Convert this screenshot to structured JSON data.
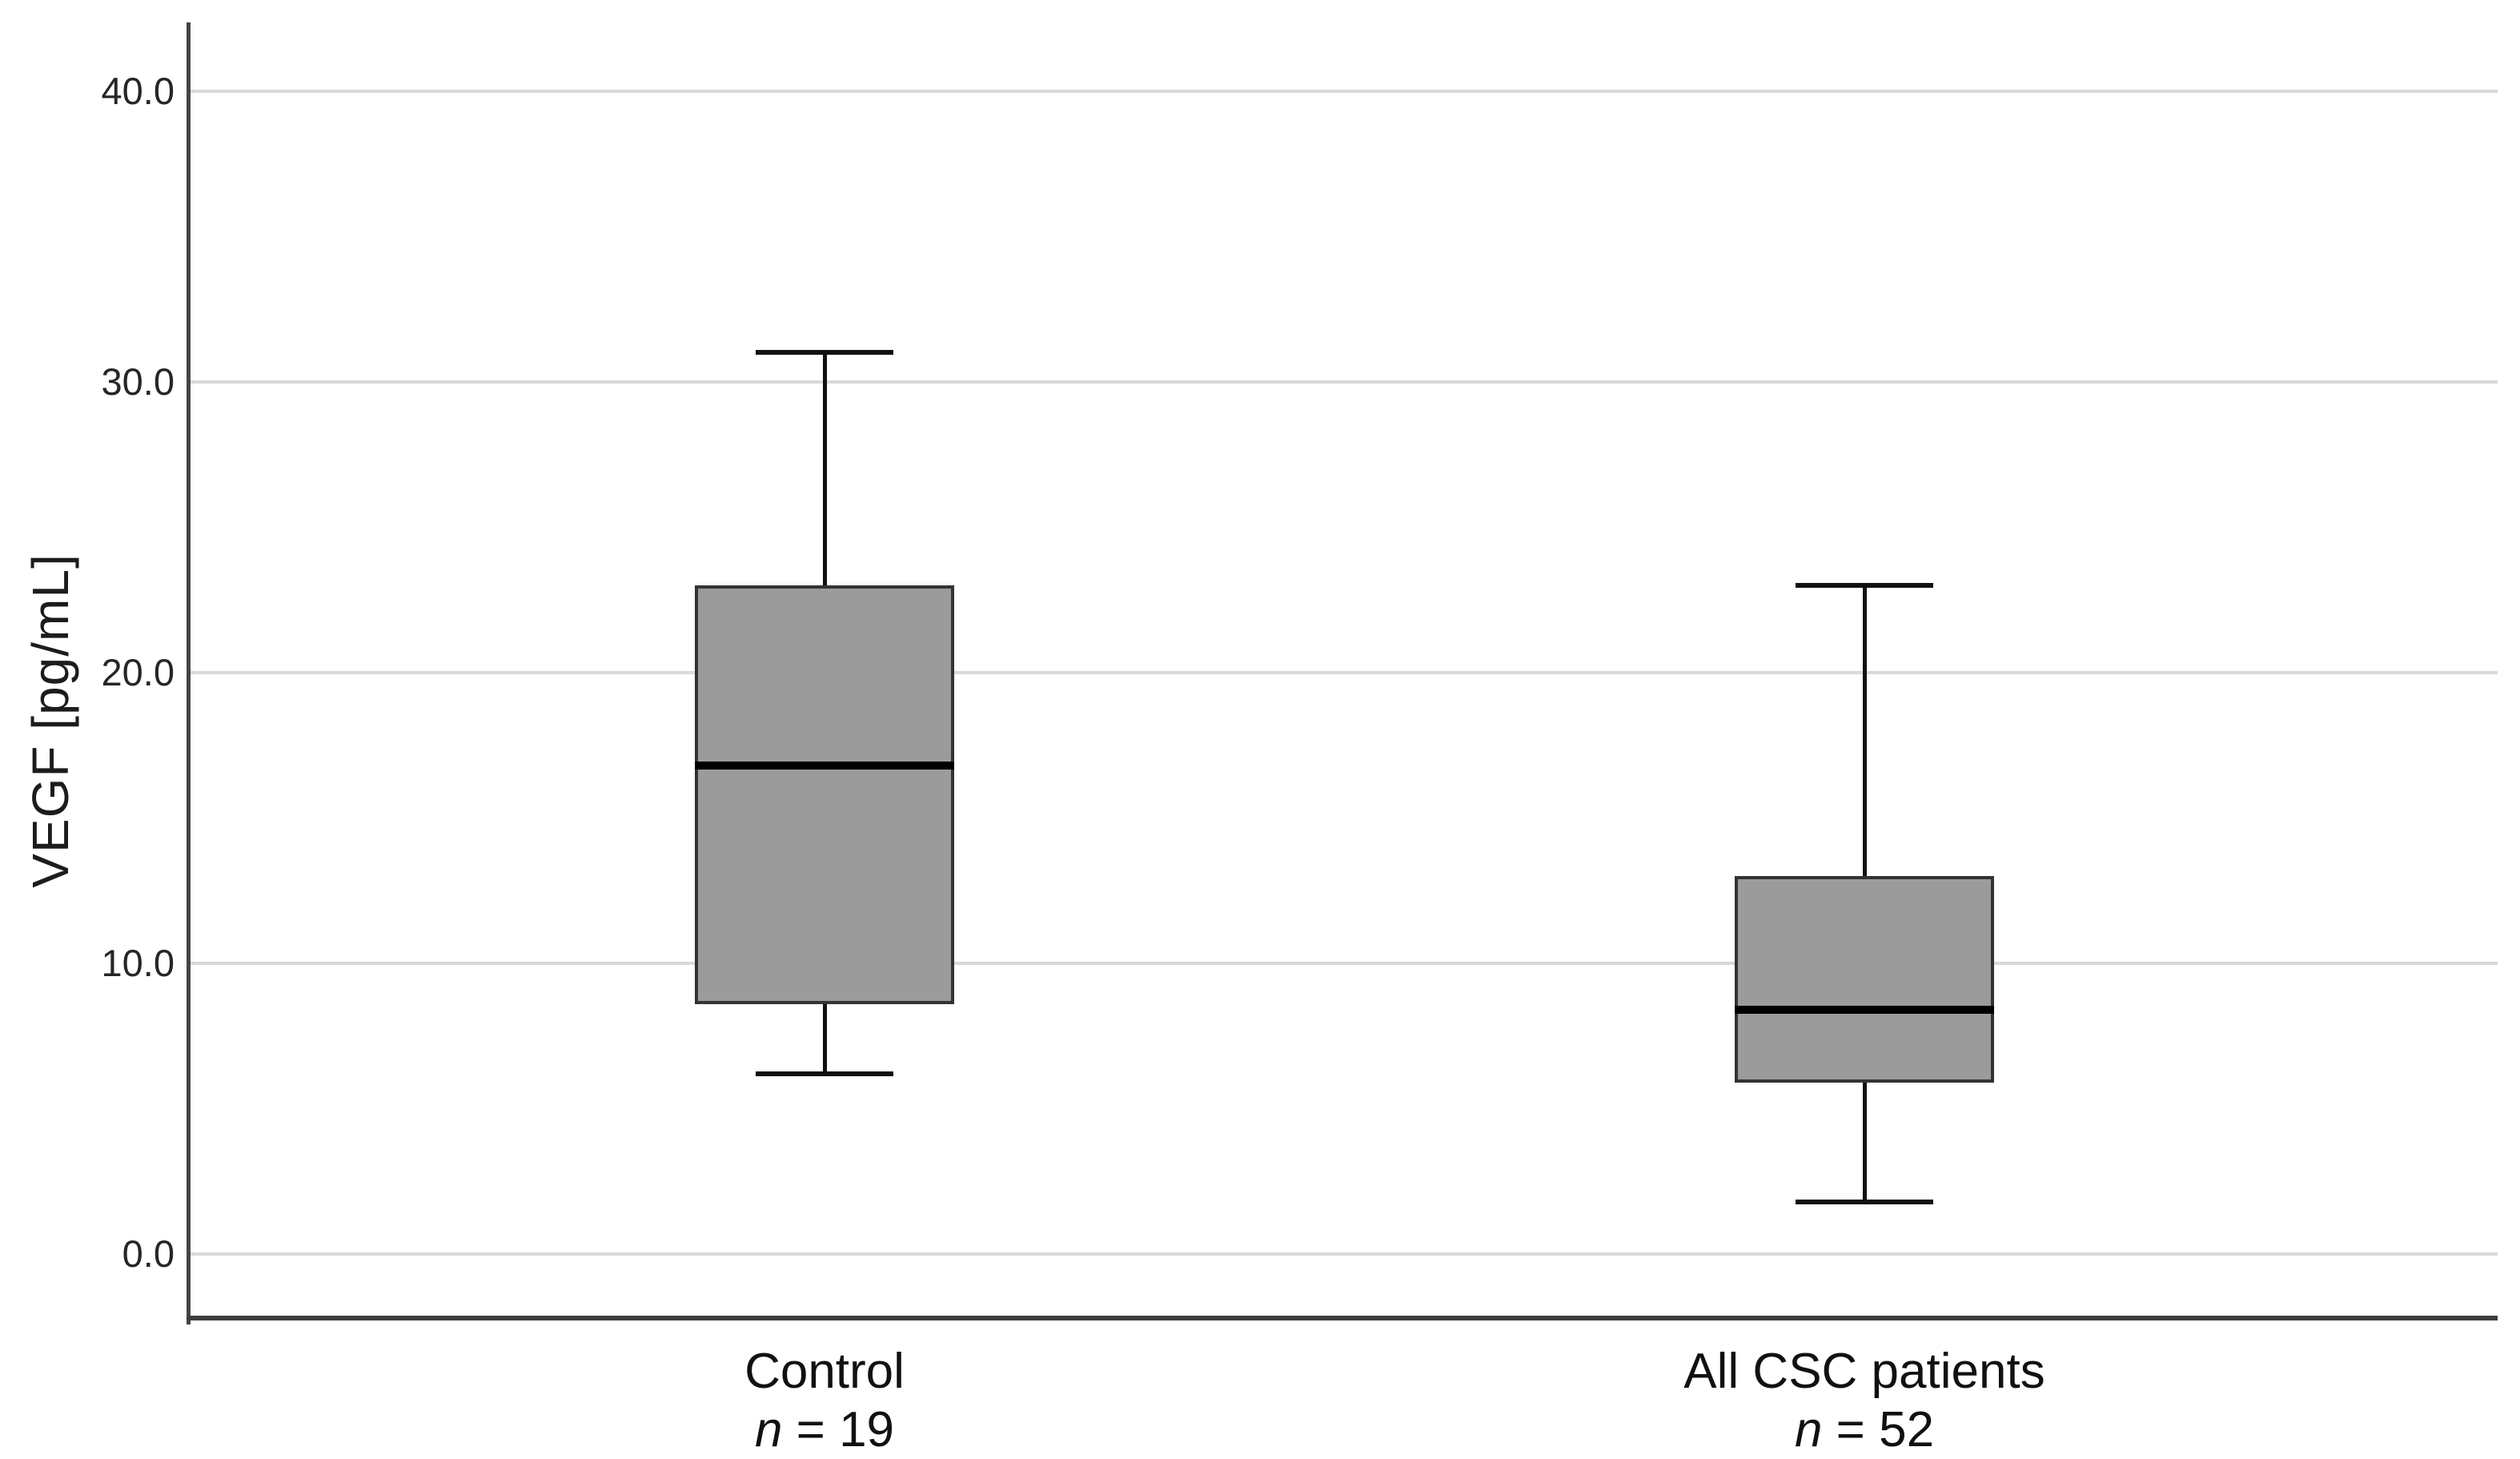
{
  "chart_data": {
    "type": "boxplot",
    "title": "",
    "ylabel": "VEGF [pg/mL]",
    "xlabel": "",
    "ylim": [
      -2.2,
      42.3
    ],
    "yticks": [
      0,
      10,
      20,
      30,
      40
    ],
    "ytick_labels": [
      "0.0",
      "10.0",
      "20.0",
      "30.0",
      "40.0"
    ],
    "grid": true,
    "legend": "none",
    "series": [
      {
        "category": "Control",
        "n": 19,
        "whisker_low": 6.2,
        "q1": 8.6,
        "median": 16.8,
        "q3": 23.0,
        "whisker_high": 31.0
      },
      {
        "category": "All CSC patients",
        "n": 52,
        "whisker_low": 1.8,
        "q1": 5.9,
        "median": 8.4,
        "q3": 13.0,
        "whisker_high": 23.0
      }
    ],
    "x_labels": [
      {
        "line1": "Control",
        "italic": "n",
        "rest": " = 19"
      },
      {
        "line1": "All CSC patients",
        "italic": "n",
        "rest": " = 52"
      }
    ]
  },
  "style": {
    "background": "#ffffff",
    "box_fill": "#9b9b9b",
    "box_border": "#333333",
    "median_color": "#000000",
    "whisker_color": "#111111",
    "gridline_color": "#d9d9d9",
    "axis_color": "#454545",
    "text_color": "#1c1c1c"
  }
}
